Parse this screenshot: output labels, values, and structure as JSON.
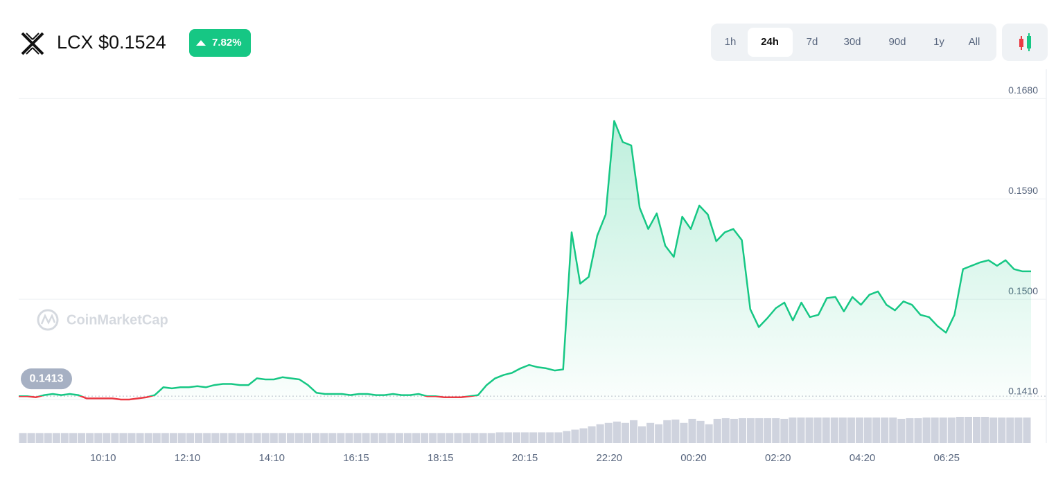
{
  "header": {
    "symbol": "LCX",
    "price": "$0.1524",
    "change": "7.82%",
    "timeframes": [
      "1h",
      "24h",
      "7d",
      "30d",
      "90d",
      "1y",
      "All"
    ]
  },
  "watermark": "CoinMarketCap",
  "chart_data": {
    "type": "line",
    "series": [
      {
        "color": "#16c784",
        "below_color": "#ea3943",
        "values": [
          0.1413,
          0.1413,
          0.1412,
          0.1414,
          0.1415,
          0.1414,
          0.1415,
          0.1414,
          0.1411,
          0.1411,
          0.1411,
          0.1411,
          0.141,
          0.141,
          0.1411,
          0.1412,
          0.1414,
          0.1421,
          0.142,
          0.1421,
          0.1421,
          0.1422,
          0.1421,
          0.1423,
          0.1424,
          0.1424,
          0.1423,
          0.1423,
          0.1429,
          0.1428,
          0.1428,
          0.143,
          0.1429,
          0.1428,
          0.1423,
          0.1416,
          0.1415,
          0.1415,
          0.1415,
          0.1414,
          0.1415,
          0.1415,
          0.1414,
          0.1414,
          0.1415,
          0.1414,
          0.1414,
          0.1415,
          0.1413,
          0.1413,
          0.1412,
          0.1412,
          0.1412,
          0.1413,
          0.1414,
          0.1423,
          0.1429,
          0.1432,
          0.1434,
          0.1438,
          0.1441,
          0.1439,
          0.1438,
          0.1436,
          0.1437,
          0.156,
          0.1514,
          0.152,
          0.1557,
          0.1576,
          0.166,
          0.1641,
          0.1638,
          0.1582,
          0.1563,
          0.1577,
          0.1548,
          0.1538,
          0.1574,
          0.1563,
          0.1584,
          0.1576,
          0.1552,
          0.156,
          0.1563,
          0.1553,
          0.1491,
          0.1475,
          0.1483,
          0.1492,
          0.1497,
          0.1481,
          0.1497,
          0.1484,
          0.1486,
          0.1501,
          0.1502,
          0.1489,
          0.1502,
          0.1495,
          0.1504,
          0.1507,
          0.1495,
          0.149,
          0.1498,
          0.1495,
          0.1486,
          0.1484,
          0.1476,
          0.147,
          0.1486,
          0.1527,
          0.153,
          0.1533,
          0.1535,
          0.153,
          0.1535,
          0.1527,
          0.1525,
          0.1525
        ]
      }
    ],
    "volume": [
      15,
      15,
      15,
      15,
      15,
      15,
      15,
      15,
      15,
      15,
      15,
      15,
      15,
      15,
      15,
      15,
      15,
      15,
      15,
      15,
      15,
      15,
      15,
      15,
      15,
      15,
      15,
      15,
      15,
      15,
      15,
      15,
      15,
      15,
      15,
      15,
      15,
      15,
      15,
      15,
      15,
      15,
      15,
      15,
      15,
      15,
      15,
      15,
      15,
      15,
      15,
      15,
      15,
      15,
      15,
      15,
      15,
      16,
      16,
      16,
      16,
      16,
      16,
      16,
      16,
      18,
      20,
      22,
      25,
      28,
      30,
      32,
      30,
      34,
      25,
      30,
      28,
      34,
      35,
      30,
      36,
      33,
      28,
      36,
      37,
      36,
      37,
      37,
      37,
      37,
      37,
      36,
      38,
      38,
      38,
      38,
      38,
      38,
      38,
      38,
      38,
      38,
      38,
      38,
      38,
      36,
      37,
      37,
      38,
      38,
      38,
      38,
      39,
      39,
      39,
      39,
      38,
      38,
      38,
      38,
      38
    ],
    "volume_color": "#cfd3de",
    "ylim": [
      0.141,
      0.1697
    ],
    "yticks": [
      {
        "value": 0.168,
        "label": "0.1680"
      },
      {
        "value": 0.159,
        "label": "0.1590"
      },
      {
        "value": 0.15,
        "label": "0.1500"
      },
      {
        "value": 0.141,
        "label": "0.1410"
      }
    ],
    "baseline": 0.1413,
    "xtick_labels": [
      "10:10",
      "12:10",
      "14:10",
      "16:15",
      "18:15",
      "20:15",
      "22:20",
      "00:20",
      "02:20",
      "04:20",
      "06:25"
    ],
    "grid": true
  }
}
